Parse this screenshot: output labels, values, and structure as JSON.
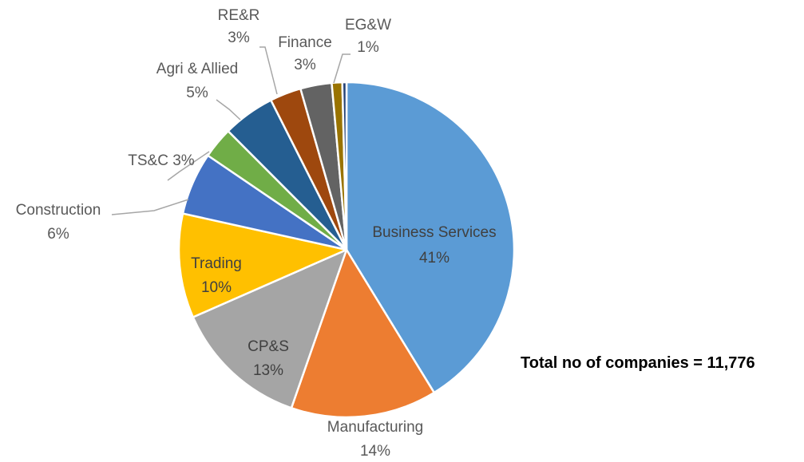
{
  "chart_data": {
    "type": "pie",
    "title": "",
    "slices": [
      {
        "name": "Business Services",
        "value": 41,
        "label": "41%",
        "color": "#5B9BD5"
      },
      {
        "name": "Manufacturing",
        "value": 14,
        "label": "14%",
        "color": "#ED7D31"
      },
      {
        "name": "CP&S",
        "value": 13,
        "label": "13%",
        "color": "#A5A5A5"
      },
      {
        "name": "Trading",
        "value": 10,
        "label": "10%",
        "color": "#FFC000"
      },
      {
        "name": "Construction",
        "value": 6,
        "label": "6%",
        "color": "#4472C4"
      },
      {
        "name": "TS&C",
        "value": 3,
        "label": "3%",
        "color": "#70AD47"
      },
      {
        "name": "Agri & Allied",
        "value": 5,
        "label": "5%",
        "color": "#255E91"
      },
      {
        "name": "RE&R",
        "value": 3,
        "label": "3%",
        "color": "#9E480E"
      },
      {
        "name": "Finance",
        "value": 3,
        "label": "3%",
        "color": "#636363"
      },
      {
        "name": "EG&W",
        "value": 1,
        "label": "1%",
        "color": "#997300"
      },
      {
        "name": "",
        "value": 0.4,
        "label": "",
        "color": "#264478"
      }
    ],
    "legend": "none",
    "annotation": "Total no of companies = 11,776"
  }
}
